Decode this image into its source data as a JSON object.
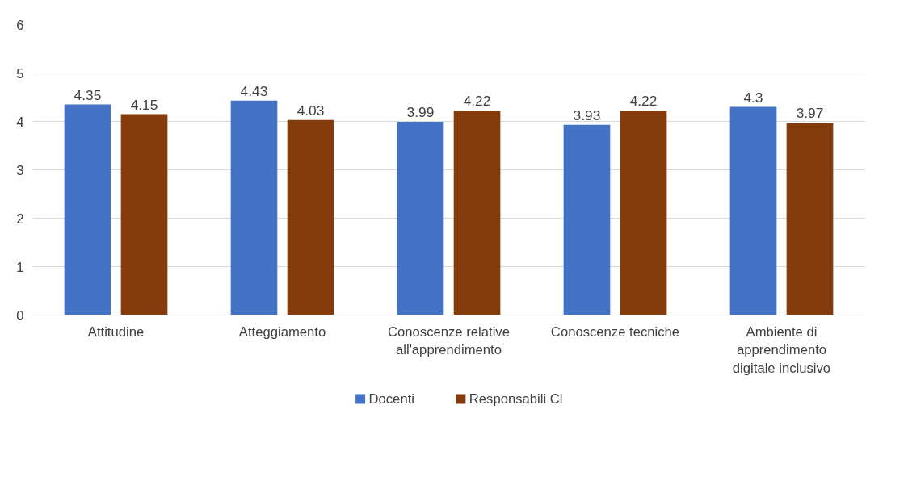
{
  "chart_data": {
    "type": "bar",
    "categories": [
      "Attitudine",
      "Atteggiamento",
      "Conoscenze relative all'apprendimento",
      "Conoscenze tecniche",
      "Ambiente di apprendimento digitale inclusivo"
    ],
    "series": [
      {
        "name": "Docenti",
        "color": "#4472c4",
        "values": [
          4.35,
          4.43,
          3.99,
          3.93,
          4.3
        ]
      },
      {
        "name": "Responsabili Cl",
        "color": "#843c0c",
        "values": [
          4.15,
          4.03,
          4.22,
          4.22,
          3.97
        ]
      }
    ],
    "ylim": [
      0,
      6
    ],
    "yticks": [
      0,
      1,
      2,
      3,
      4,
      5,
      6
    ],
    "grid": "y",
    "legend": "bottom",
    "data_labels": true
  }
}
